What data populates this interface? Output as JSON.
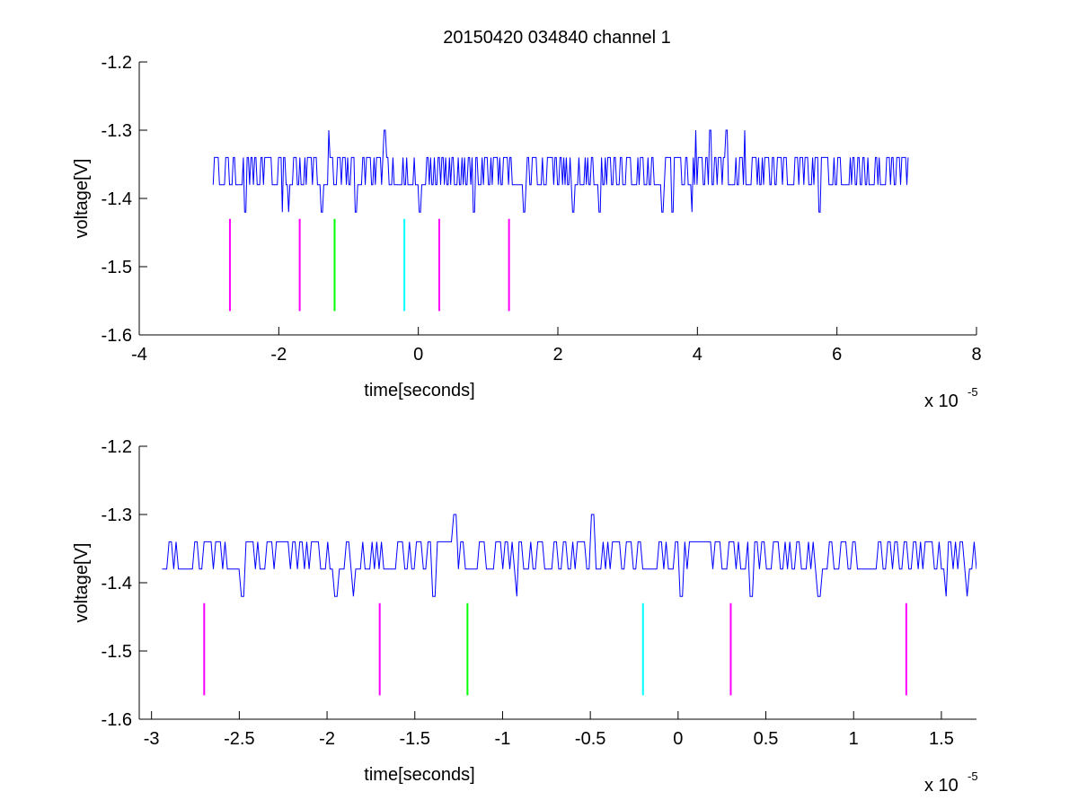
{
  "figure": {
    "title": "20150420 034840 channel 1",
    "background": "#ffffff"
  },
  "colors": {
    "signal": "#0000ff",
    "magenta": "#ff00ff",
    "green": "#00ff00",
    "cyan": "#00ffff",
    "axis": "#000000"
  },
  "chart_data": [
    {
      "type": "line",
      "title": "20150420 034840 channel 1",
      "xlabel": "time[seconds]",
      "ylabel": "voltage[V]",
      "x_multiplier_label": "x 10",
      "x_multiplier_exponent": "-5",
      "xlim": [
        -4e-05,
        8e-05
      ],
      "ylim": [
        -1.6,
        -1.2
      ],
      "xticks": [
        -4e-05,
        -2e-05,
        0,
        2e-05,
        4e-05,
        6e-05,
        8e-05
      ],
      "xtick_labels": [
        "-4",
        "-2",
        "0",
        "2",
        "4",
        "6",
        "8"
      ],
      "yticks": [
        -1.6,
        -1.5,
        -1.4,
        -1.3,
        -1.2
      ],
      "ytick_labels": [
        "-1.6",
        "-1.5",
        "-1.4",
        "-1.3",
        "-1.2"
      ],
      "grid": false,
      "series": [
        {
          "kind": "signal",
          "color": "#0000ff",
          "x_range": [
            -2.94e-05,
            7.02e-05
          ],
          "baseline_levels": [
            -1.34,
            -1.38
          ],
          "dip_level": -1.42,
          "spike_level": -1.3,
          "spikes_x": [
            -1.28e-05,
            -4.8e-06,
            3.98e-05,
            4.18e-05,
            4.42e-05,
            4.68e-05
          ],
          "dips_x": [
            -2.48e-05,
            -1.95e-05,
            -1.86e-05,
            -1.38e-05,
            -9e-06,
            2e-07,
            8e-06,
            1.52e-05,
            2.22e-05,
            2.6e-05,
            3.5e-05,
            3.64e-05,
            3.92e-05,
            5.75e-05
          ]
        }
      ],
      "markers": [
        {
          "x": -2.7e-05,
          "y": [
            -1.565,
            -1.43
          ],
          "color": "#ff00ff"
        },
        {
          "x": -1.7e-05,
          "y": [
            -1.565,
            -1.43
          ],
          "color": "#ff00ff"
        },
        {
          "x": -1.2e-05,
          "y": [
            -1.565,
            -1.43
          ],
          "color": "#00ff00"
        },
        {
          "x": -2e-06,
          "y": [
            -1.565,
            -1.43
          ],
          "color": "#00ffff"
        },
        {
          "x": 3e-06,
          "y": [
            -1.565,
            -1.43
          ],
          "color": "#ff00ff"
        },
        {
          "x": 1.3e-05,
          "y": [
            -1.565,
            -1.43
          ],
          "color": "#ff00ff"
        }
      ]
    },
    {
      "type": "line",
      "title": "",
      "xlabel": "time[seconds]",
      "ylabel": "voltage[V]",
      "x_multiplier_label": "x 10",
      "x_multiplier_exponent": "-5",
      "xlim": [
        -3.07e-05,
        1.7e-05
      ],
      "ylim": [
        -1.6,
        -1.2
      ],
      "xticks": [
        -3e-05,
        -2.5e-05,
        -2e-05,
        -1.5e-05,
        -1e-05,
        -5e-06,
        0,
        5e-06,
        1e-05,
        1.5e-05
      ],
      "xtick_labels": [
        "-3",
        "-2.5",
        "-2",
        "-1.5",
        "-1",
        "-0.5",
        "0",
        "0.5",
        "1",
        "1.5"
      ],
      "yticks": [
        -1.6,
        -1.5,
        -1.4,
        -1.3,
        -1.2
      ],
      "ytick_labels": [
        "-1.6",
        "-1.5",
        "-1.4",
        "-1.3",
        "-1.2"
      ],
      "grid": false,
      "series": [
        {
          "kind": "signal",
          "color": "#0000ff",
          "x_range": [
            -2.94e-05,
            1.7e-05
          ],
          "baseline_levels": [
            -1.34,
            -1.38
          ],
          "dip_level": -1.42,
          "spike_level": -1.3,
          "spikes_x": [
            -1.27e-05,
            -4.9e-06
          ],
          "dips_x": [
            -2.48e-05,
            -1.95e-05,
            -1.85e-05,
            -1.39e-05,
            -9.2e-06,
            2e-07,
            4.2e-06,
            8e-06,
            1.53e-05,
            1.65e-05
          ]
        }
      ],
      "markers": [
        {
          "x": -2.7e-05,
          "y": [
            -1.565,
            -1.43
          ],
          "color": "#ff00ff"
        },
        {
          "x": -1.7e-05,
          "y": [
            -1.565,
            -1.43
          ],
          "color": "#ff00ff"
        },
        {
          "x": -1.2e-05,
          "y": [
            -1.565,
            -1.43
          ],
          "color": "#00ff00"
        },
        {
          "x": -2e-06,
          "y": [
            -1.565,
            -1.43
          ],
          "color": "#00ffff"
        },
        {
          "x": 3e-06,
          "y": [
            -1.565,
            -1.43
          ],
          "color": "#ff00ff"
        },
        {
          "x": 1.3e-05,
          "y": [
            -1.565,
            -1.43
          ],
          "color": "#ff00ff"
        }
      ]
    }
  ]
}
